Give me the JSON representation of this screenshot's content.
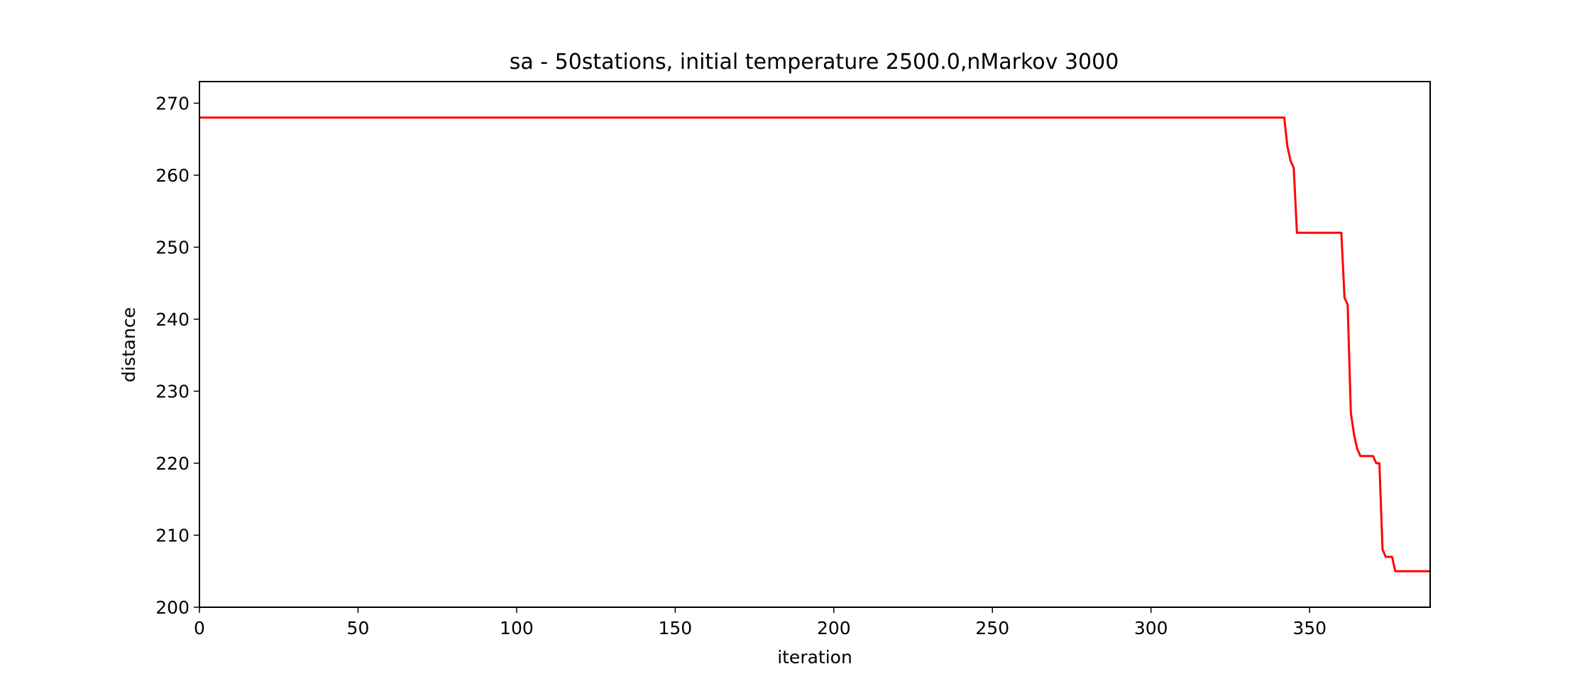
{
  "chart_data": {
    "type": "line",
    "title": "sa - 50stations, initial temperature 2500.0,nMarkov 3000",
    "xlabel": "iteration",
    "ylabel": "distance",
    "xlim": [
      0,
      388
    ],
    "ylim": [
      200,
      273
    ],
    "xticks": [
      0,
      50,
      100,
      150,
      200,
      250,
      300,
      350
    ],
    "xtick_labels": [
      "0",
      "50",
      "100",
      "150",
      "200",
      "250",
      "300",
      "350"
    ],
    "yticks": [
      200,
      210,
      220,
      230,
      240,
      250,
      260,
      270
    ],
    "ytick_labels": [
      "200",
      "210",
      "220",
      "230",
      "240",
      "250",
      "260",
      "270"
    ],
    "grid": false,
    "legend": "none",
    "series": [
      {
        "color": "#ff0000",
        "x": [
          0,
          342,
          343,
          344,
          345,
          346,
          347,
          350,
          355,
          360,
          361,
          362,
          363,
          364,
          365,
          366,
          367,
          368,
          370,
          371,
          372,
          373,
          374,
          375,
          376,
          377,
          380,
          385,
          388
        ],
        "y": [
          268,
          268,
          264,
          262,
          261,
          252,
          252,
          252,
          252,
          252,
          243,
          242,
          227,
          224,
          222,
          221,
          221,
          221,
          221,
          220,
          220,
          208,
          207,
          207,
          207,
          205,
          205,
          205,
          205
        ]
      }
    ]
  }
}
